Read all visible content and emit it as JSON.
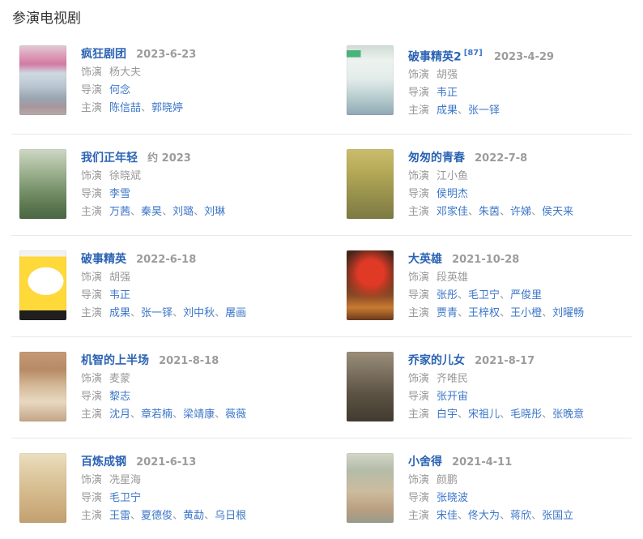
{
  "section": {
    "title": "参演电视剧"
  },
  "labels": {
    "role": "饰演",
    "director": "导演",
    "stars": "主演",
    "name_separator": "、"
  },
  "colors": {
    "title_link": "#2a63b3",
    "link": "#3c77c9",
    "muted_text": "#999999",
    "date_text": "#9c9c9c",
    "heading_text": "#333333",
    "divider": "#e9e9e9",
    "background": "#ffffff"
  },
  "shows": [
    {
      "title": "疯狂剧团",
      "date": "2023-6-23",
      "role": "杨大夫",
      "directors": [
        "何念"
      ],
      "stars": [
        "陈信喆",
        "郭晓婷"
      ],
      "poster_gradient": "linear-gradient(180deg,#e0cbd4 0%,#dd9db9 14%,#d37ba4 27%,#cfd9e2 40%,#bac7d2 58%,#99a5b0 76%,#a8969b 88%,#b7a8a9 100%)"
    },
    {
      "title": "破事精英2",
      "ref": "[87]",
      "date": "2023-4-29",
      "role": "胡强",
      "directors": [
        "韦正"
      ],
      "stars": [
        "成果",
        "张一铎"
      ],
      "poster_gradient": "linear-gradient(90deg,#49b37a 0%,#49b37a 30%,transparent 30%) 0 8%/100% 10% no-repeat,linear-gradient(180deg,#cfdcd4 0%,#edf2ef 22%,#e3ecea 48%,#bcd0d2 72%,#8fa9b4 100%)"
    },
    {
      "title": "我们正年轻",
      "date": "约 2023",
      "role": "徐晓斌",
      "directors": [
        "李雪"
      ],
      "stars": [
        "万茜",
        "秦昊",
        "刘璐",
        "刘琳"
      ],
      "poster_gradient": "linear-gradient(180deg,#cdd8c4 0%,#a9bb9c 25%,#7d9770 55%,#5d7a52 80%,#4c6643 100%)"
    },
    {
      "title": "匆匆的青春",
      "date": "2022-7-8",
      "role": "江小鱼",
      "directors": [
        "侯明杰"
      ],
      "stars": [
        "邓家佳",
        "朱茵",
        "许娣",
        "侯天来"
      ],
      "poster_gradient": "linear-gradient(180deg,#cabc6e 0%,#b7ab58 30%,#9d954e 60%,#7c7a42 100%)"
    },
    {
      "title": "破事精英",
      "date": "2022-6-18",
      "role": "胡强",
      "directors": [
        "韦正"
      ],
      "stars": [
        "成果",
        "张一铎",
        "刘中秋",
        "屠画"
      ],
      "poster_gradient": "radial-gradient(ellipse 38% 20% at 56% 44%,#ffffff 0 99%,transparent 100%),linear-gradient(180deg,#f2f2f2 0%,#f2f2f2 9%,#ffd83a 9%,#ffd83a 86%,#1f1f1f 86%,#1f1f1f 100%)"
    },
    {
      "title": "大英雄",
      "date": "2021-10-28",
      "role": "段英雄",
      "directors": [
        "张彤",
        "毛卫宁",
        "严俊里"
      ],
      "stars": [
        "贾青",
        "王梓权",
        "王小橙",
        "刘曜畅"
      ],
      "poster_gradient": "radial-gradient(circle at 52% 32%,#e03a26 0 24%,rgba(224,58,38,0.55) 36%,transparent 52%),linear-gradient(180deg,#42251c 0%,#5c2f1e 35%,#8a4a24 65%,#c97b31 82%,#6b3a1e 100%)"
    },
    {
      "title": "机智的上半场",
      "date": "2021-8-18",
      "role": "麦蒙",
      "directors": [
        "黎志"
      ],
      "stars": [
        "沈月",
        "章若楠",
        "梁靖康",
        "薇薇"
      ],
      "poster_gradient": "linear-gradient(180deg,#c49a76 0%,#b68a64 25%,#d6bb9b 50%,#e8d8c0 72%,#c3a485 100%)"
    },
    {
      "title": "乔家的儿女",
      "date": "2021-8-17",
      "role": "齐唯民",
      "directors": [
        "张开宙"
      ],
      "stars": [
        "白宇",
        "宋祖儿",
        "毛晓彤",
        "张晚意"
      ],
      "poster_gradient": "linear-gradient(180deg,#9a8e7a 0%,#7c7060 30%,#5d5344 60%,#413a2f 100%)"
    },
    {
      "title": "百炼成钢",
      "date": "2021-6-13",
      "role": "冼星海",
      "directors": [
        "毛卫宁"
      ],
      "stars": [
        "王雷",
        "夏德俊",
        "黄勐",
        "乌日根"
      ],
      "poster_gradient": "linear-gradient(180deg,#ecdfc0 0%,#e0cda6 25%,#d5bb8d 55%,#c9a97a 85%,#c0a06e 100%)"
    },
    {
      "title": "小舍得",
      "date": "2021-4-11",
      "role": "颜鹏",
      "directors": [
        "张晓波"
      ],
      "stars": [
        "宋佳",
        "佟大为",
        "蒋欣",
        "张国立"
      ],
      "poster_gradient": "linear-gradient(180deg,#d3d6c6 0%,#b4bca8 25%,#cdbc9f 55%,#bb9f82 80%,#979b8a 100%)"
    }
  ]
}
